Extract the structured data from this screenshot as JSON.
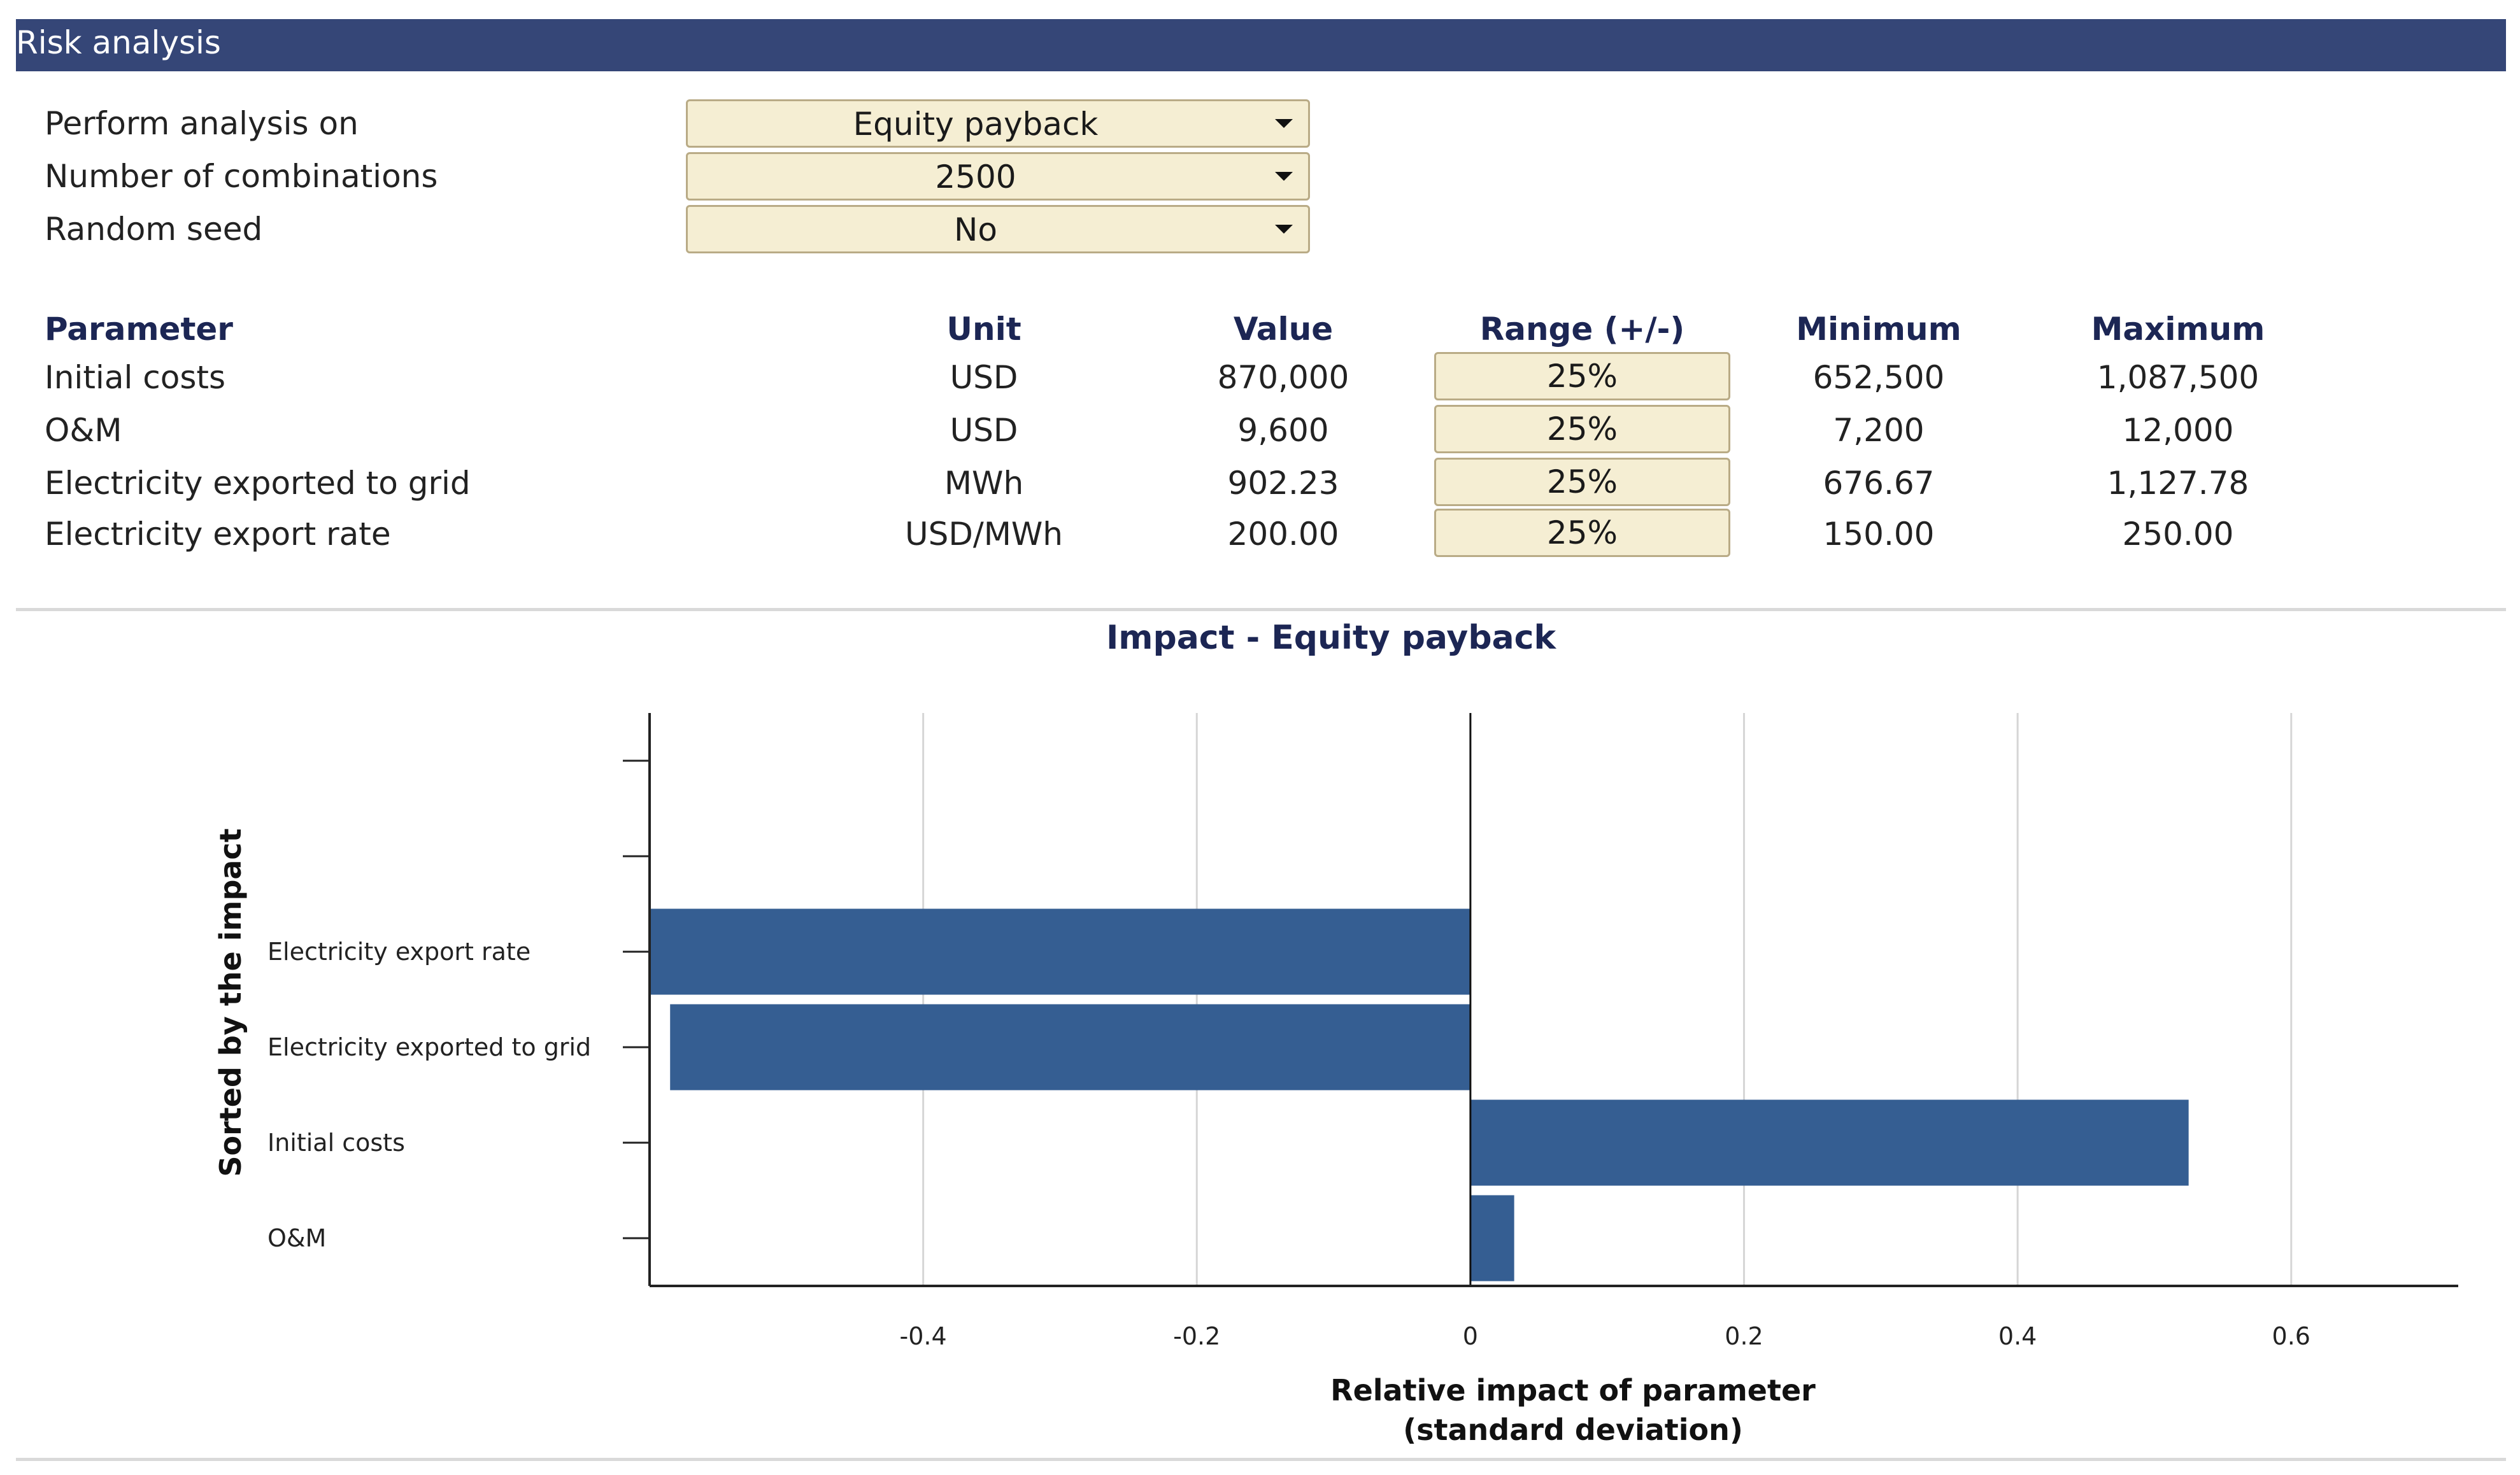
{
  "header": {
    "title": "Risk analysis"
  },
  "settings": [
    {
      "label": "Perform analysis on",
      "value": "Equity payback"
    },
    {
      "label": "Number of combinations",
      "value": "2500"
    },
    {
      "label": "Random seed",
      "value": "No"
    }
  ],
  "table": {
    "headers": [
      "Parameter",
      "Unit",
      "Value",
      "Range (+/-)",
      "Minimum",
      "Maximum"
    ],
    "rows": [
      {
        "parameter": "Initial costs",
        "unit": "USD",
        "value": "870,000",
        "range": "25%",
        "minimum": "652,500",
        "maximum": "1,087,500"
      },
      {
        "parameter": "O&M",
        "unit": "USD",
        "value": "9,600",
        "range": "25%",
        "minimum": "7,200",
        "maximum": "12,000"
      },
      {
        "parameter": "Electricity exported to grid",
        "unit": "MWh",
        "value": "902.23",
        "range": "25%",
        "minimum": "676.67",
        "maximum": "1,127.78"
      },
      {
        "parameter": "Electricity export rate",
        "unit": "USD/MWh",
        "value": "200.00",
        "range": "25%",
        "minimum": "150.00",
        "maximum": "250.00"
      }
    ]
  },
  "chart_data": {
    "type": "bar",
    "orientation": "horizontal",
    "title": "Impact -  Equity payback",
    "categories": [
      "Electricity export rate",
      "Electricity exported to grid",
      "Initial costs",
      "O&M"
    ],
    "values": [
      -0.6,
      -0.585,
      0.525,
      0.032
    ],
    "xlabel": "Relative impact of parameter",
    "xlabel_sub": "(standard deviation)",
    "ylabel": "Sorted by the impact",
    "xlim": [
      -0.6,
      0.75
    ],
    "xticks": [
      -0.4,
      -0.2,
      0,
      0.2,
      0.4,
      0.6
    ],
    "xtick_labels": [
      "-0.4",
      "-0.2",
      "0",
      "0.2",
      "0.4",
      "0.6"
    ],
    "empty_slots_above": 2,
    "grid": "vertical",
    "bar_color": "#355e92"
  }
}
